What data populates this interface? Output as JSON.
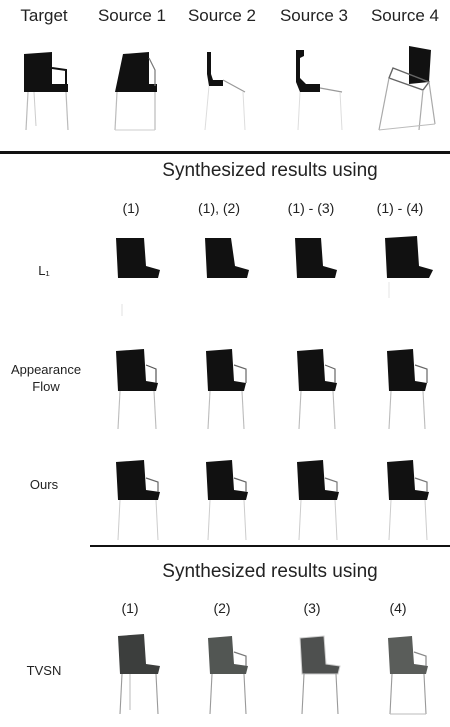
{
  "header": {
    "columns": [
      "Target",
      "Source 1",
      "Source 2",
      "Source 3",
      "Source 4"
    ]
  },
  "section1": {
    "heading": "Synthesized results using",
    "subheaders": [
      "(1)",
      "(1), (2)",
      "(1) - (3)",
      "(1) - (4)"
    ],
    "rows": [
      {
        "label": "L₁"
      },
      {
        "label": "Appearance Flow"
      },
      {
        "label": "Ours"
      }
    ]
  },
  "section2": {
    "heading": "Synthesized results using",
    "subheaders": [
      "(1)",
      "(2)",
      "(3)",
      "(4)"
    ],
    "rows": [
      {
        "label": "TVSN"
      }
    ]
  },
  "colors": {
    "chair_dark": "#111111",
    "chair_grey": "#4a4d4b",
    "leg": "#b8b8b8",
    "rule": "#111111"
  }
}
